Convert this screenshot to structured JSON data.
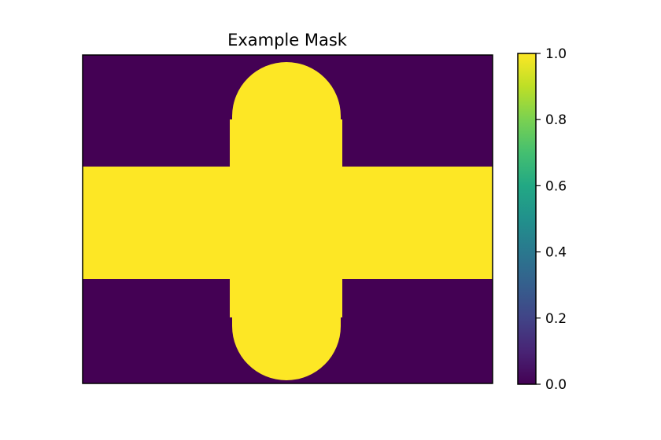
{
  "chart_data": {
    "type": "heatmap",
    "title": "Example Mask",
    "xlabel": "",
    "ylabel": "",
    "colormap": "viridis",
    "colors": {
      "low": "#440154",
      "high": "#fde725"
    },
    "values": [
      0,
      1
    ],
    "colorbar": {
      "range": [
        0.0,
        1.0
      ],
      "ticks": [
        "0.0",
        "0.2",
        "0.4",
        "0.6",
        "0.8",
        "1.0"
      ]
    },
    "axes_ticks_visible": false,
    "grid": false
  }
}
